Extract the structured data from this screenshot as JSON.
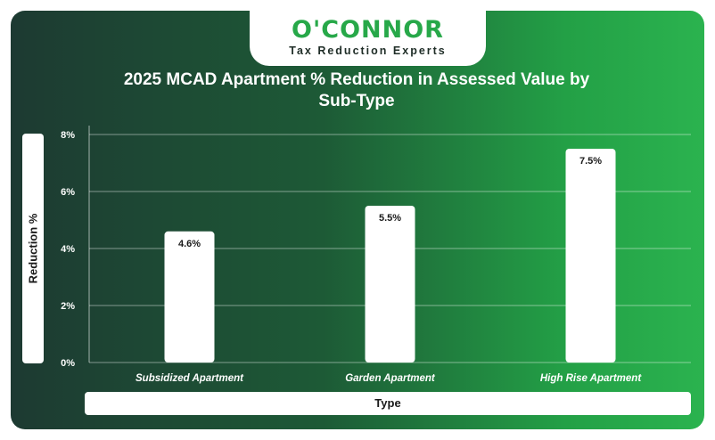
{
  "logo": {
    "name": "O'CONNOR",
    "tagline": "Tax Reduction Experts"
  },
  "colors": {
    "background_left": "#1d3a32",
    "background_right": "#2bb34f",
    "bar": "#ffffff",
    "brand_green": "#27a849"
  },
  "chart_data": {
    "type": "bar",
    "title": "2025 MCAD Apartment % Reduction in Assessed Value by Sub-Type",
    "xlabel": "Type",
    "ylabel": "Reduction %",
    "categories": [
      "Subsidized Apartment",
      "Garden Apartment",
      "High Rise Apartment"
    ],
    "values": [
      4.6,
      5.5,
      7.5
    ],
    "value_labels": [
      "4.6%",
      "5.5%",
      "7.5%"
    ],
    "ylim": [
      0,
      8
    ],
    "yticks": [
      "0%",
      "2%",
      "4%",
      "6%",
      "8%"
    ],
    "grid": true,
    "legend": "none"
  }
}
